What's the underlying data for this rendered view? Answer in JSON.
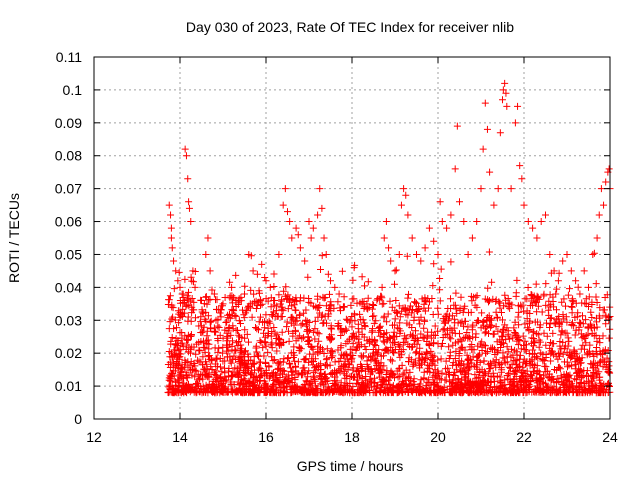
{
  "chart_data": {
    "type": "scatter",
    "title": "Day 030 of 2023, Rate Of TEC Index for receiver nlib",
    "xlabel": "GPS time / hours",
    "ylabel": "ROTI / TECUs",
    "xlim": [
      12,
      24
    ],
    "ylim": [
      0,
      0.11
    ],
    "x_ticks": [
      12,
      14,
      16,
      18,
      20,
      22,
      24
    ],
    "x_tick_labels": [
      "12",
      "14",
      "16",
      "18",
      "20",
      "22",
      "24"
    ],
    "y_ticks": [
      0,
      0.01,
      0.02,
      0.03,
      0.04,
      0.05,
      0.06,
      0.07,
      0.08,
      0.09,
      0.1,
      0.11
    ],
    "y_tick_labels": [
      "0",
      "0.01",
      "0.02",
      "0.03",
      "0.04",
      "0.05",
      "0.06",
      "0.07",
      "0.08",
      "0.09",
      "0.1",
      "0.11"
    ],
    "grid": true,
    "marker": "+",
    "color": "#ff0000",
    "series": [
      {
        "name": "ROTI",
        "points": [
          [
            13.75,
            0.065
          ],
          [
            13.78,
            0.062
          ],
          [
            13.8,
            0.058
          ],
          [
            13.8,
            0.055
          ],
          [
            13.82,
            0.052
          ],
          [
            13.85,
            0.048
          ],
          [
            13.9,
            0.045
          ],
          [
            13.95,
            0.042
          ],
          [
            14.0,
            0.04
          ],
          [
            14.05,
            0.038
          ],
          [
            14.1,
            0.036
          ],
          [
            14.12,
            0.082
          ],
          [
            14.15,
            0.08
          ],
          [
            14.18,
            0.073
          ],
          [
            14.2,
            0.066
          ],
          [
            14.22,
            0.064
          ],
          [
            14.25,
            0.06
          ],
          [
            14.3,
            0.045
          ],
          [
            14.35,
            0.04
          ],
          [
            14.5,
            0.036
          ],
          [
            14.6,
            0.05
          ],
          [
            14.65,
            0.055
          ],
          [
            14.7,
            0.045
          ],
          [
            14.8,
            0.038
          ],
          [
            15.0,
            0.035
          ],
          [
            15.2,
            0.04
          ],
          [
            15.3,
            0.036
          ],
          [
            15.5,
            0.038
          ],
          [
            15.6,
            0.05
          ],
          [
            15.7,
            0.045
          ],
          [
            15.8,
            0.044
          ],
          [
            15.9,
            0.047
          ],
          [
            16.0,
            0.042
          ],
          [
            16.1,
            0.04
          ],
          [
            16.2,
            0.036
          ],
          [
            16.3,
            0.05
          ],
          [
            16.4,
            0.065
          ],
          [
            16.45,
            0.07
          ],
          [
            16.5,
            0.063
          ],
          [
            16.55,
            0.06
          ],
          [
            16.6,
            0.055
          ],
          [
            16.7,
            0.058
          ],
          [
            16.75,
            0.056
          ],
          [
            16.8,
            0.052
          ],
          [
            16.9,
            0.048
          ],
          [
            17.0,
            0.06
          ],
          [
            17.05,
            0.055
          ],
          [
            17.1,
            0.058
          ],
          [
            17.2,
            0.062
          ],
          [
            17.25,
            0.07
          ],
          [
            17.3,
            0.064
          ],
          [
            17.35,
            0.055
          ],
          [
            17.4,
            0.05
          ],
          [
            17.45,
            0.044
          ],
          [
            17.5,
            0.042
          ],
          [
            17.6,
            0.04
          ],
          [
            17.7,
            0.038
          ],
          [
            17.8,
            0.034
          ],
          [
            17.9,
            0.03
          ],
          [
            18.0,
            0.028
          ],
          [
            18.05,
            0.046
          ],
          [
            18.1,
            0.025
          ],
          [
            18.3,
            0.022
          ],
          [
            18.5,
            0.02
          ],
          [
            18.7,
            0.04
          ],
          [
            18.75,
            0.055
          ],
          [
            18.8,
            0.06
          ],
          [
            18.85,
            0.052
          ],
          [
            18.9,
            0.048
          ],
          [
            19.0,
            0.045
          ],
          [
            19.1,
            0.05
          ],
          [
            19.15,
            0.065
          ],
          [
            19.2,
            0.07
          ],
          [
            19.25,
            0.068
          ],
          [
            19.3,
            0.062
          ],
          [
            19.4,
            0.055
          ],
          [
            19.5,
            0.05
          ],
          [
            19.6,
            0.048
          ],
          [
            19.7,
            0.052
          ],
          [
            19.8,
            0.058
          ],
          [
            19.9,
            0.054
          ],
          [
            20.0,
            0.05
          ],
          [
            20.05,
            0.066
          ],
          [
            20.1,
            0.06
          ],
          [
            20.2,
            0.058
          ],
          [
            20.3,
            0.062
          ],
          [
            20.4,
            0.076
          ],
          [
            20.45,
            0.089
          ],
          [
            20.5,
            0.066
          ],
          [
            20.6,
            0.06
          ],
          [
            20.7,
            0.05
          ],
          [
            20.8,
            0.055
          ],
          [
            20.9,
            0.06
          ],
          [
            21.0,
            0.07
          ],
          [
            21.05,
            0.082
          ],
          [
            21.1,
            0.096
          ],
          [
            21.15,
            0.088
          ],
          [
            21.2,
            0.075
          ],
          [
            21.3,
            0.065
          ],
          [
            21.4,
            0.07
          ],
          [
            21.45,
            0.087
          ],
          [
            21.5,
            0.097
          ],
          [
            21.52,
            0.1
          ],
          [
            21.55,
            0.102
          ],
          [
            21.58,
            0.099
          ],
          [
            21.6,
            0.095
          ],
          [
            21.7,
            0.07
          ],
          [
            21.8,
            0.09
          ],
          [
            21.85,
            0.095
          ],
          [
            21.9,
            0.077
          ],
          [
            21.95,
            0.073
          ],
          [
            22.0,
            0.065
          ],
          [
            22.1,
            0.06
          ],
          [
            22.2,
            0.058
          ],
          [
            22.3,
            0.055
          ],
          [
            22.4,
            0.06
          ],
          [
            22.5,
            0.062
          ],
          [
            22.6,
            0.05
          ],
          [
            22.7,
            0.045
          ],
          [
            22.8,
            0.042
          ],
          [
            22.9,
            0.048
          ],
          [
            23.0,
            0.05
          ],
          [
            23.1,
            0.045
          ],
          [
            23.2,
            0.042
          ],
          [
            23.3,
            0.038
          ],
          [
            23.4,
            0.045
          ],
          [
            23.5,
            0.04
          ],
          [
            23.6,
            0.05
          ],
          [
            23.7,
            0.055
          ],
          [
            23.75,
            0.062
          ],
          [
            23.8,
            0.07
          ],
          [
            23.85,
            0.065
          ],
          [
            23.9,
            0.072
          ],
          [
            23.95,
            0.075
          ],
          [
            23.98,
            0.076
          ],
          [
            24.0,
            0.07
          ]
        ]
      }
    ]
  }
}
